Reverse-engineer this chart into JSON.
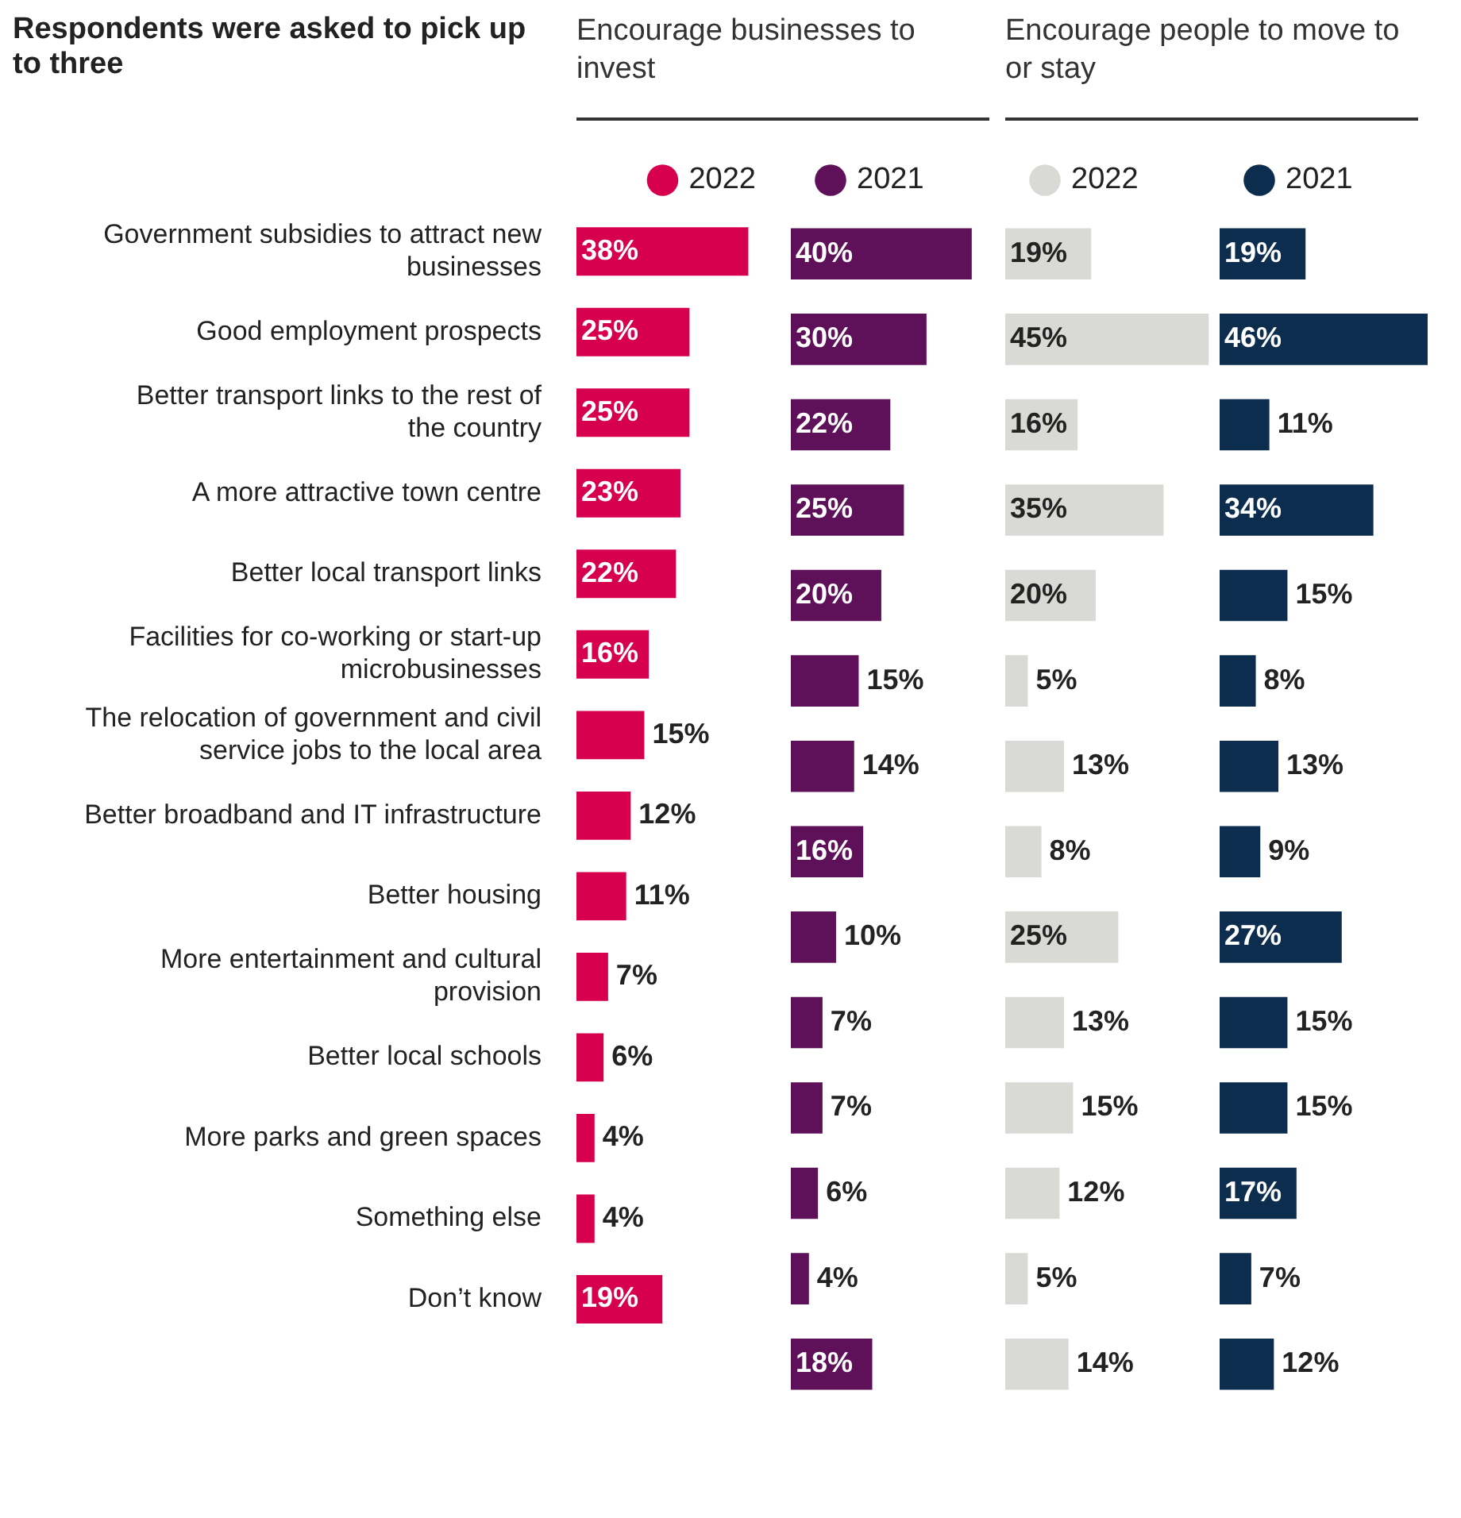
{
  "chart_data": [
    {
      "type": "bar",
      "orientation": "horizontal",
      "title": "Respondents were asked to pick up to three",
      "legend_title": "Encourage businesses to invest",
      "legend": "top right",
      "categories": [
        "Government subsidies to attract new businesses",
        "Good employment prospects",
        "Better transport links to the rest of the country",
        "A more attractive town centre",
        "Better local transport links",
        "Facilities for co-working or start-up microbusinesses",
        "The relocation of government and civil service jobs to the local area",
        "Better broadband and IT infrastructure",
        "Better housing",
        "More entertainment and cultural provision",
        "Better local schools",
        "More parks and green spaces",
        "Something else",
        "Don’t know"
      ],
      "series": [
        {
          "name": "2022",
          "color": "#d6004f",
          "values": [
            38,
            25,
            25,
            23,
            22,
            16,
            15,
            12,
            11,
            7,
            6,
            4,
            4,
            19
          ],
          "value_labels": [
            "38%",
            "25%",
            "25%",
            "23%",
            "22%",
            "16%",
            "15%",
            "12%",
            "11%",
            "7%",
            "6%",
            "4%",
            "4%",
            "19%"
          ]
        }
      ]
    },
    {
      "type": "bar",
      "orientation": "horizontal",
      "legend": "top left",
      "categories": [
        null,
        null,
        null,
        null,
        null,
        null,
        null,
        null,
        null,
        null,
        null,
        null,
        null,
        null
      ],
      "series": [
        {
          "name": "2021",
          "color": "#5e1158",
          "values": [
            40,
            30,
            22,
            25,
            20,
            15,
            14,
            16,
            10,
            7,
            7,
            6,
            4,
            18
          ],
          "value_labels": [
            "40%",
            "30%",
            "22%",
            "25%",
            "20%",
            "15%",
            "14%",
            "16%",
            "10%",
            "7%",
            "7%",
            "6%",
            "4%",
            "18%"
          ]
        }
      ]
    },
    {
      "type": "bar",
      "orientation": "horizontal",
      "legend_title": "Encourage people to move to or stay",
      "legend": "top left",
      "categories": [
        null,
        null,
        null,
        null,
        null,
        null,
        null,
        null,
        null,
        null,
        null,
        null,
        null,
        null
      ],
      "series": [
        {
          "name": "2022",
          "color": "#d9d9d6",
          "values": [
            19,
            45,
            16,
            35,
            20,
            5,
            13,
            8,
            25,
            13,
            15,
            12,
            5,
            14
          ],
          "value_labels": [
            "19%",
            "45%",
            "16%",
            "35%",
            "20%",
            "5%",
            "13%",
            "8%",
            "25%",
            "13%",
            "15%",
            "12%",
            "5%",
            "14%"
          ]
        }
      ]
    },
    {
      "type": "bar",
      "orientation": "horizontal",
      "legend": "top left",
      "categories": [
        null,
        null,
        null,
        null,
        null,
        null,
        null,
        null,
        null,
        null,
        null,
        null,
        null,
        null
      ],
      "series": [
        {
          "name": "2021",
          "color": "#0d2d4f",
          "values": [
            19,
            46,
            11,
            34,
            15,
            8,
            13,
            9,
            27,
            15,
            15,
            17,
            7,
            12
          ],
          "value_labels": [
            "19%",
            "46%",
            "11%",
            "34%",
            "15%",
            "8%",
            "13%",
            "9%",
            "27%",
            "15%",
            "15%",
            "17%",
            "7%",
            "12%"
          ]
        }
      ]
    }
  ]
}
